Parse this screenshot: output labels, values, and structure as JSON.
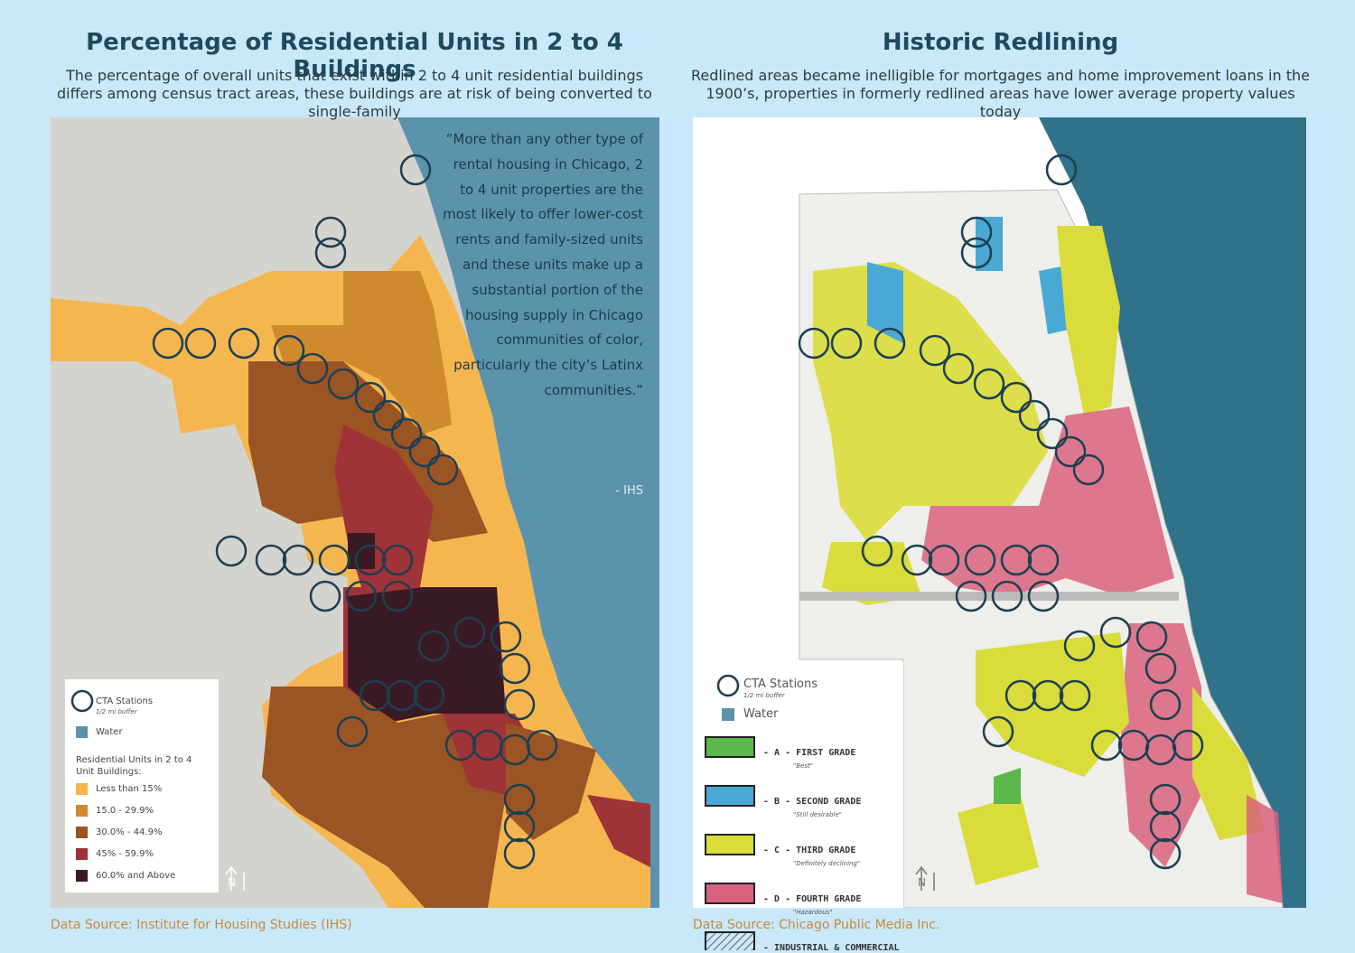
{
  "panels": [
    {
      "title": "Percentage of Residential Units in 2 to 4 Buildings",
      "subtitle": "The percentage of overall units that exist within 2 to 4 unit residential buildings differs among census tract areas, these buildings are at risk of being converted to single-family",
      "quote": "“More than any other type of rental housing in Chicago, 2 to 4 unit properties are the most likely to offer lower-cost rents and family-sized units and these units make up a substantial portion of the housing supply in Chicago communities of color, particularly the city’s Latinx communities.”",
      "quote_attribution": "- IHS",
      "legend": {
        "stations": "CTA Stations",
        "stations_note": "1/2 mi buffer",
        "water": "Water",
        "heading": "Residential Units in 2 to 4 Unit Buildings:",
        "items": [
          {
            "label": "Less than 15%",
            "color": "#f6b64f"
          },
          {
            "label": "15.0 - 29.9%",
            "color": "#cf8a2e"
          },
          {
            "label": "30.0% - 44.9%",
            "color": "#9b5424"
          },
          {
            "label": "45% - 59.9%",
            "color": "#9e3338"
          },
          {
            "label": "60.0% and Above",
            "color": "#3a1a24"
          }
        ]
      },
      "north": "N",
      "source": "Data Source: Institute for Housing Studies (IHS)"
    },
    {
      "title": "Historic Redlining",
      "subtitle": "Redlined areas became inelligible for mortgages and home improvement loans in the 1900’s, properties in formerly redlined areas have lower average property values today",
      "legend": {
        "stations": "CTA Stations",
        "stations_note": "1/2 mi buffer",
        "water": "Water",
        "items": [
          {
            "label": "- A - FIRST GRADE",
            "note": "\"Best\"",
            "color": "#5cb84a"
          },
          {
            "label": "- B - SECOND GRADE",
            "note": "\"Still desirable\"",
            "color": "#4aa8d4"
          },
          {
            "label": "- C - THIRD GRADE",
            "note": "\"Definitely declining\"",
            "color": "#d9dc3a"
          },
          {
            "label": "- D - FOURTH GRADE",
            "note": "\"Hazardous\"",
            "color": "#d9627d"
          },
          {
            "label": "- INDUSTRIAL & COMMERCIAL",
            "color": "#ffffff"
          }
        ]
      },
      "north": "N",
      "source": "Data Source: Chicago Public Media Inc."
    }
  ]
}
